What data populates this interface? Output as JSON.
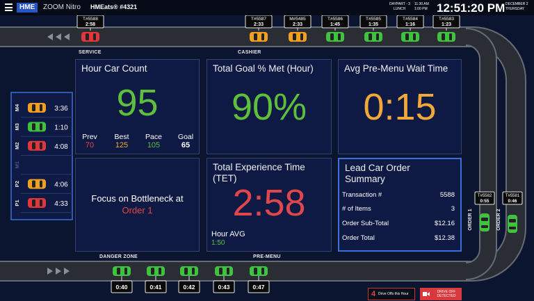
{
  "header": {
    "logo": "HME",
    "product": "ZOOM Nitro",
    "store": "HMEats® #4321",
    "daypart": "DAYPART - 3",
    "daypart_name": "LUNCH",
    "daypart_start": "11:30 AM",
    "daypart_end": "1:00 PM",
    "time": "12:51:20 PM",
    "date": "DECEMBER 2",
    "weekday": "THURSDAY"
  },
  "lane_labels": {
    "service": "SERVICE",
    "cashier": "CASHIER",
    "danger_zone": "DANGER ZONE",
    "pre_menu": "PRE-MENU",
    "order_1": "ORDER 1",
    "order_2": "ORDER 2"
  },
  "top_lane": [
    {
      "id": "T#5588",
      "time": "2:58",
      "color": "red"
    },
    {
      "id": "T#5587",
      "time": "2:33",
      "color": "orange"
    },
    {
      "id": "M#5485",
      "time": "2:33",
      "color": "orange"
    },
    {
      "id": "T#5586",
      "time": "1:45",
      "color": "green"
    },
    {
      "id": "T#5585",
      "time": "1:35",
      "color": "green"
    },
    {
      "id": "T#5584",
      "time": "1:16",
      "color": "green"
    },
    {
      "id": "T#5583",
      "time": "1:23",
      "color": "green"
    }
  ],
  "order_lanes": [
    {
      "id": "T#5582",
      "time": "0:55",
      "color": "green"
    },
    {
      "id": "T#5581",
      "time": "0:46",
      "color": "green"
    }
  ],
  "bottom_lane": [
    {
      "time": "0:40",
      "color": "green"
    },
    {
      "time": "0:41",
      "color": "green"
    },
    {
      "time": "0:42",
      "color": "green"
    },
    {
      "time": "0:43",
      "color": "green"
    },
    {
      "time": "0:47",
      "color": "green"
    }
  ],
  "parking": [
    {
      "spot": "M4",
      "time": "3:36",
      "color": "orange"
    },
    {
      "spot": "M3",
      "time": "1:10",
      "color": "green"
    },
    {
      "spot": "M2",
      "time": "4:08",
      "color": "red"
    },
    {
      "spot": "M1"
    },
    {
      "spot": "P2",
      "time": "4:06",
      "color": "orange"
    },
    {
      "spot": "P1",
      "time": "4:33",
      "color": "red"
    }
  ],
  "tiles": {
    "hour_car_count": {
      "title": "Hour Car Count",
      "value": "95",
      "stats": [
        {
          "label": "Prev",
          "value": "70"
        },
        {
          "label": "Best",
          "value": "125"
        },
        {
          "label": "Pace",
          "value": "105"
        },
        {
          "label": "Goal",
          "value": "65"
        }
      ]
    },
    "goal_met": {
      "title": "Total Goal % Met (Hour)",
      "value": "90%"
    },
    "pre_menu_wait": {
      "title": "Avg Pre-Menu Wait Time",
      "value": "0:15"
    },
    "bottleneck": {
      "title": "Focus on Bottleneck at",
      "value": "Order 1"
    },
    "tet": {
      "title": "Total Experience Time (TET)",
      "value": "2:58",
      "sub_label": "Hour AVG",
      "sub_value": "1:50"
    },
    "lead_car": {
      "title": "Lead Car Order Summary",
      "rows": [
        {
          "label": "Transaction #",
          "value": "5588"
        },
        {
          "label": "# of Items",
          "value": "3"
        },
        {
          "label": "Order Sub-Total",
          "value": "$12.16"
        },
        {
          "label": "Order Total",
          "value": "$12.38"
        }
      ]
    }
  },
  "drive_offs": {
    "count": "4",
    "label": "Drive Offs this Hour",
    "alert": "DRIVE OFF DETECTED"
  }
}
